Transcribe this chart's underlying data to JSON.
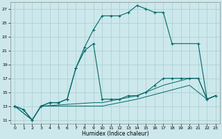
{
  "xlabel": "Humidex (Indice chaleur)",
  "background_color": "#cce8ec",
  "grid_color": "#aacccc",
  "line_color": "#006868",
  "xlim": [
    -0.5,
    23.5
  ],
  "ylim": [
    10.5,
    28.0
  ],
  "xticks": [
    0,
    1,
    2,
    3,
    4,
    5,
    6,
    7,
    8,
    9,
    10,
    11,
    12,
    13,
    14,
    15,
    16,
    17,
    18,
    19,
    20,
    21,
    22,
    23
  ],
  "yticks": [
    11,
    13,
    15,
    17,
    19,
    21,
    23,
    25,
    27
  ],
  "series": {
    "line1_x": [
      0,
      1,
      2,
      3,
      4,
      5,
      6,
      7,
      8,
      9,
      10,
      11,
      12,
      13,
      14,
      15,
      16,
      17,
      18,
      21,
      22,
      23
    ],
    "line1_y": [
      13,
      12.5,
      11,
      13,
      13.5,
      13.5,
      14,
      18.5,
      21.5,
      24,
      26,
      26,
      26,
      26.5,
      27.5,
      27,
      26.5,
      26.5,
      22,
      22,
      14,
      14.5
    ],
    "line2_x": [
      0,
      1,
      2,
      3,
      4,
      5,
      6,
      7,
      8,
      9,
      10,
      11,
      12,
      13,
      14,
      15,
      16,
      17,
      18,
      19,
      20,
      21,
      22,
      23
    ],
    "line2_y": [
      13,
      12.5,
      11,
      13,
      13.5,
      13.5,
      14,
      18.5,
      21,
      22,
      14,
      14,
      14,
      14.5,
      14.5,
      15,
      16,
      17,
      17,
      17,
      17,
      17,
      14,
      14.5
    ],
    "line3_x": [
      0,
      2,
      3,
      9,
      10,
      14,
      17,
      20,
      21,
      22,
      23
    ],
    "line3_y": [
      13,
      11,
      13,
      13.5,
      13.5,
      14.5,
      16,
      17,
      17,
      14,
      14.5
    ],
    "line4_x": [
      0,
      2,
      3,
      9,
      10,
      14,
      17,
      20,
      22,
      23
    ],
    "line4_y": [
      13,
      11,
      13,
      13,
      13,
      14,
      15,
      16,
      14,
      14.5
    ]
  }
}
